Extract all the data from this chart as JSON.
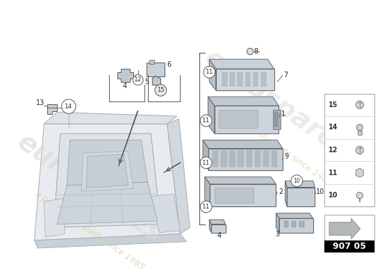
{
  "bg_color": "#ffffff",
  "line_color": "#555555",
  "light_gray": "#d0d4d8",
  "mid_gray": "#b0b8c0",
  "dark_gray": "#888890",
  "sketch_gray": "#c8cdd2",
  "watermark1": "eurospares",
  "watermark2": "a passion for parts since 1985",
  "wm_color": "#d8d8d8",
  "title_text": "907 05",
  "legend_nums": [
    "15",
    "14",
    "12",
    "11",
    "10"
  ]
}
